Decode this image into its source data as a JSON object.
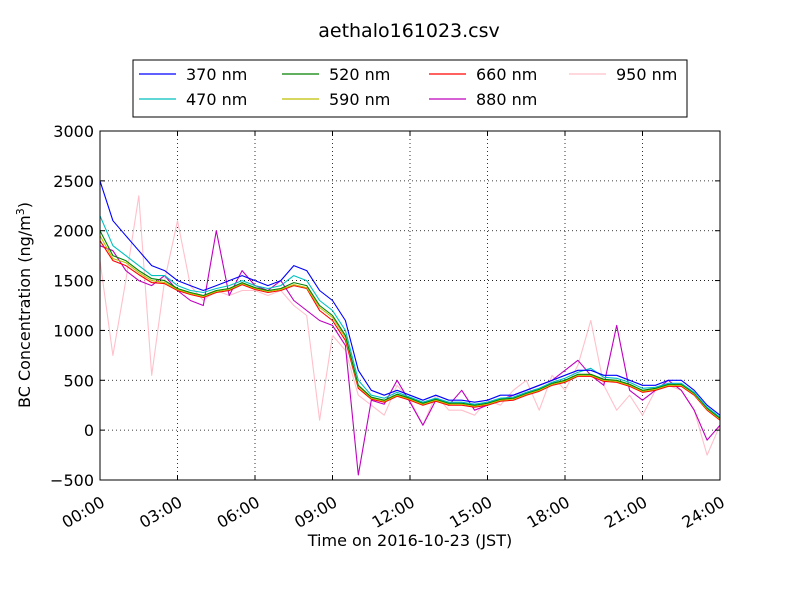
{
  "chart_data": {
    "type": "line",
    "title": "aethalo161023.csv",
    "xlabel": "Time on 2016-10-23 (JST)",
    "ylabel": "BC Concentration (ng/m³)",
    "ylabel_main": "BC Concentration (ng/m",
    "ylabel_sup": "3",
    "ylabel_end": ")",
    "xlim": [
      0,
      24
    ],
    "ylim": [
      -500,
      3000
    ],
    "xticks": [
      0,
      3,
      6,
      9,
      12,
      15,
      18,
      21,
      24
    ],
    "xtick_labels": [
      "00:00",
      "03:00",
      "06:00",
      "09:00",
      "12:00",
      "15:00",
      "18:00",
      "21:00",
      "24:00"
    ],
    "yticks": [
      -500,
      0,
      500,
      1000,
      1500,
      2000,
      2500,
      3000
    ],
    "ytick_labels": [
      "−500",
      "0",
      "500",
      "1000",
      "1500",
      "2000",
      "2500",
      "3000"
    ],
    "grid": true,
    "legend_position": "top",
    "series": [
      {
        "name": "370 nm",
        "color": "#0000ff",
        "x": [
          0,
          0.5,
          1,
          1.5,
          2,
          2.5,
          3,
          3.5,
          4,
          4.5,
          5,
          5.5,
          6,
          6.5,
          7,
          7.5,
          8,
          8.5,
          9,
          9.5,
          10,
          10.5,
          11,
          11.5,
          12,
          12.5,
          13,
          13.5,
          14,
          14.5,
          15,
          15.5,
          16,
          16.5,
          17,
          17.5,
          18,
          18.5,
          19,
          19.5,
          20,
          20.5,
          21,
          21.5,
          22,
          22.5,
          23,
          23.5,
          24
        ],
        "values": [
          2500,
          2100,
          1950,
          1800,
          1650,
          1600,
          1500,
          1450,
          1400,
          1450,
          1500,
          1550,
          1500,
          1450,
          1500,
          1650,
          1600,
          1400,
          1300,
          1100,
          600,
          400,
          350,
          400,
          350,
          300,
          350,
          300,
          300,
          280,
          300,
          350,
          350,
          400,
          450,
          500,
          550,
          600,
          600,
          550,
          550,
          500,
          450,
          450,
          500,
          500,
          400,
          250,
          150
        ]
      },
      {
        "name": "470 nm",
        "color": "#00bfbf",
        "x": [
          0,
          0.5,
          1,
          1.5,
          2,
          2.5,
          3,
          3.5,
          4,
          4.5,
          5,
          5.5,
          6,
          6.5,
          7,
          7.5,
          8,
          8.5,
          9,
          9.5,
          10,
          10.5,
          11,
          11.5,
          12,
          12.5,
          13,
          13.5,
          14,
          14.5,
          15,
          15.5,
          16,
          16.5,
          17,
          17.5,
          18,
          18.5,
          19,
          19.5,
          20,
          20.5,
          21,
          21.5,
          22,
          22.5,
          23,
          23.5,
          24
        ],
        "values": [
          2150,
          1850,
          1750,
          1650,
          1550,
          1550,
          1450,
          1400,
          1380,
          1420,
          1450,
          1500,
          1450,
          1420,
          1450,
          1550,
          1500,
          1300,
          1200,
          1000,
          500,
          350,
          320,
          380,
          330,
          280,
          320,
          280,
          280,
          260,
          280,
          320,
          330,
          380,
          420,
          480,
          520,
          580,
          620,
          530,
          520,
          480,
          420,
          430,
          470,
          470,
          380,
          230,
          130
        ]
      },
      {
        "name": "520 nm",
        "color": "#008000",
        "x": [
          0,
          0.5,
          1,
          1.5,
          2,
          2.5,
          3,
          3.5,
          4,
          4.5,
          5,
          5.5,
          6,
          6.5,
          7,
          7.5,
          8,
          8.5,
          9,
          9.5,
          10,
          10.5,
          11,
          11.5,
          12,
          12.5,
          13,
          13.5,
          14,
          14.5,
          15,
          15.5,
          16,
          16.5,
          17,
          17.5,
          18,
          18.5,
          19,
          19.5,
          20,
          20.5,
          21,
          21.5,
          22,
          22.5,
          23,
          23.5,
          24
        ],
        "values": [
          2000,
          1750,
          1700,
          1600,
          1520,
          1500,
          1420,
          1380,
          1350,
          1400,
          1420,
          1480,
          1430,
          1400,
          1420,
          1480,
          1450,
          1250,
          1150,
          950,
          450,
          330,
          300,
          360,
          320,
          270,
          310,
          270,
          270,
          250,
          270,
          310,
          320,
          370,
          410,
          470,
          500,
          560,
          560,
          510,
          500,
          460,
          400,
          420,
          460,
          460,
          370,
          220,
          120
        ]
      },
      {
        "name": "590 nm",
        "color": "#bfbf00",
        "x": [
          0,
          0.5,
          1,
          1.5,
          2,
          2.5,
          3,
          3.5,
          4,
          4.5,
          5,
          5.5,
          6,
          6.5,
          7,
          7.5,
          8,
          8.5,
          9,
          9.5,
          10,
          10.5,
          11,
          11.5,
          12,
          12.5,
          13,
          13.5,
          14,
          14.5,
          15,
          15.5,
          16,
          16.5,
          17,
          17.5,
          18,
          18.5,
          19,
          19.5,
          20,
          20.5,
          21,
          21.5,
          22,
          22.5,
          23,
          23.5,
          24
        ],
        "values": [
          1950,
          1720,
          1680,
          1580,
          1500,
          1480,
          1410,
          1370,
          1340,
          1390,
          1410,
          1470,
          1420,
          1390,
          1410,
          1460,
          1430,
          1230,
          1130,
          930,
          440,
          320,
          290,
          350,
          310,
          260,
          300,
          260,
          260,
          240,
          260,
          300,
          310,
          360,
          400,
          460,
          490,
          550,
          550,
          500,
          490,
          450,
          390,
          410,
          450,
          450,
          360,
          210,
          110
        ]
      },
      {
        "name": "660 nm",
        "color": "#ff0000",
        "x": [
          0,
          0.5,
          1,
          1.5,
          2,
          2.5,
          3,
          3.5,
          4,
          4.5,
          5,
          5.5,
          6,
          6.5,
          7,
          7.5,
          8,
          8.5,
          9,
          9.5,
          10,
          10.5,
          11,
          11.5,
          12,
          12.5,
          13,
          13.5,
          14,
          14.5,
          15,
          15.5,
          16,
          16.5,
          17,
          17.5,
          18,
          18.5,
          19,
          19.5,
          20,
          20.5,
          21,
          21.5,
          22,
          22.5,
          23,
          23.5,
          24
        ],
        "values": [
          1900,
          1700,
          1650,
          1560,
          1480,
          1470,
          1400,
          1360,
          1330,
          1380,
          1400,
          1460,
          1410,
          1380,
          1400,
          1450,
          1420,
          1200,
          1100,
          900,
          420,
          310,
          280,
          340,
          300,
          250,
          290,
          250,
          250,
          230,
          250,
          290,
          300,
          350,
          390,
          450,
          480,
          540,
          540,
          490,
          480,
          440,
          380,
          400,
          440,
          440,
          350,
          200,
          100
        ]
      },
      {
        "name": "880 nm",
        "color": "#bf00bf",
        "x": [
          0,
          0.5,
          1,
          1.5,
          2,
          2.5,
          3,
          3.5,
          4,
          4.5,
          5,
          5.5,
          6,
          6.5,
          7,
          7.5,
          8,
          8.5,
          9,
          9.5,
          10,
          10.5,
          11,
          11.5,
          12,
          12.5,
          13,
          13.5,
          14,
          14.5,
          15,
          15.5,
          16,
          16.5,
          17,
          17.5,
          18,
          18.5,
          19,
          19.5,
          20,
          20.5,
          21,
          21.5,
          22,
          22.5,
          23,
          23.5,
          24
        ],
        "values": [
          1850,
          1800,
          1600,
          1500,
          1450,
          1550,
          1400,
          1300,
          1250,
          2000,
          1350,
          1600,
          1450,
          1400,
          1500,
          1300,
          1200,
          1100,
          1050,
          850,
          -450,
          300,
          260,
          500,
          280,
          50,
          300,
          250,
          400,
          200,
          250,
          300,
          350,
          400,
          450,
          500,
          600,
          700,
          550,
          450,
          1050,
          400,
          300,
          400,
          500,
          400,
          200,
          -100,
          50
        ]
      },
      {
        "name": "950 nm",
        "color": "#ffc0cb",
        "x": [
          0,
          0.5,
          1,
          1.5,
          2,
          2.5,
          3,
          3.5,
          4,
          4.5,
          5,
          5.5,
          6,
          6.5,
          7,
          7.5,
          8,
          8.5,
          9,
          9.5,
          10,
          10.5,
          11,
          11.5,
          12,
          12.5,
          13,
          13.5,
          14,
          14.5,
          15,
          15.5,
          16,
          16.5,
          17,
          17.5,
          18,
          18.5,
          19,
          19.5,
          20,
          20.5,
          21,
          21.5,
          22,
          22.5,
          23,
          23.5,
          24
        ],
        "values": [
          1700,
          750,
          1500,
          2350,
          550,
          1500,
          2100,
          1450,
          1300,
          1400,
          1350,
          1400,
          1400,
          1350,
          1400,
          1250,
          1150,
          100,
          950,
          800,
          350,
          250,
          150,
          450,
          300,
          50,
          350,
          200,
          200,
          150,
          300,
          250,
          400,
          500,
          200,
          550,
          400,
          650,
          1100,
          450,
          200,
          350,
          150,
          400,
          450,
          400,
          200,
          -250,
          50
        ]
      }
    ]
  }
}
